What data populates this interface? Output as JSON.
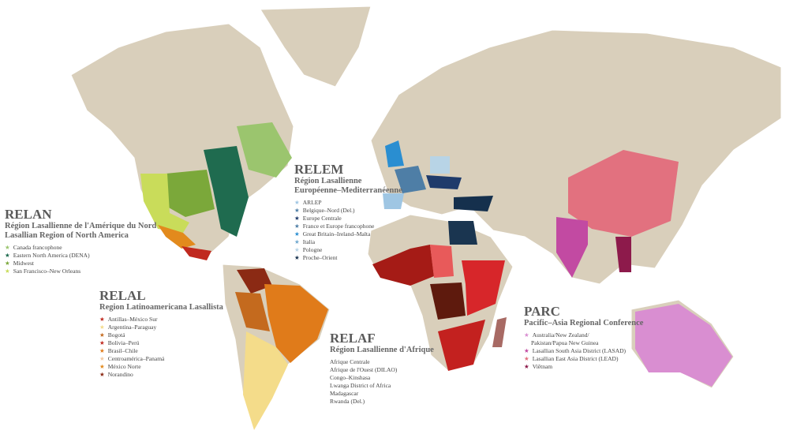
{
  "regions": [
    {
      "code": "RELAN",
      "subtitle": [
        "Région Lasallienne de l'Amérique du Nord",
        "Lasallian Region of North America"
      ],
      "items": [
        "Canada francophone",
        "Eastern North America (DENA)",
        "Midwest",
        "San Francisco–New Orleans"
      ]
    },
    {
      "code": "RELEM",
      "subtitle": [
        "Région Lasallienne",
        "Européenne–Mediterranéenne"
      ],
      "items": [
        "ARLEP",
        "Belgique–Nord (Del.)",
        "Europe Centrale",
        "France et Europe francophone",
        "Great Britain–Ireland–Malta",
        "Italia",
        "Pologne",
        "Proche–Orient"
      ]
    },
    {
      "code": "RELAL",
      "subtitle": [
        "Region Latinoamericana Lasallista"
      ],
      "items": [
        "Antillas–México Sur",
        "Argentina–Paraguay",
        "Bogotá",
        "Bolivia–Perú",
        "Brasil–Chile",
        "Centroamérica–Panamá",
        "México Norte",
        "Norandino"
      ]
    },
    {
      "code": "RELAF",
      "subtitle": [
        "Région Lasallienne d'Afrique"
      ],
      "items": [
        "Afrique Centrale",
        "Afrique de l'Ouest (DILAO)",
        "Congo–Kinshasa",
        "Lwanga District of Africa",
        "Madagascar",
        "Rwanda (Del.)"
      ]
    },
    {
      "code": "PARC",
      "subtitle": [
        "Pacific–Asia Regional Conference"
      ],
      "items": [
        "Australia/New Zealand/",
        "Pakistan/Papua New Guinea",
        "Lasallian South Asia District (LASAD)",
        "Lasallian East Asia District (LEAD)",
        "Viêtnam"
      ]
    }
  ]
}
